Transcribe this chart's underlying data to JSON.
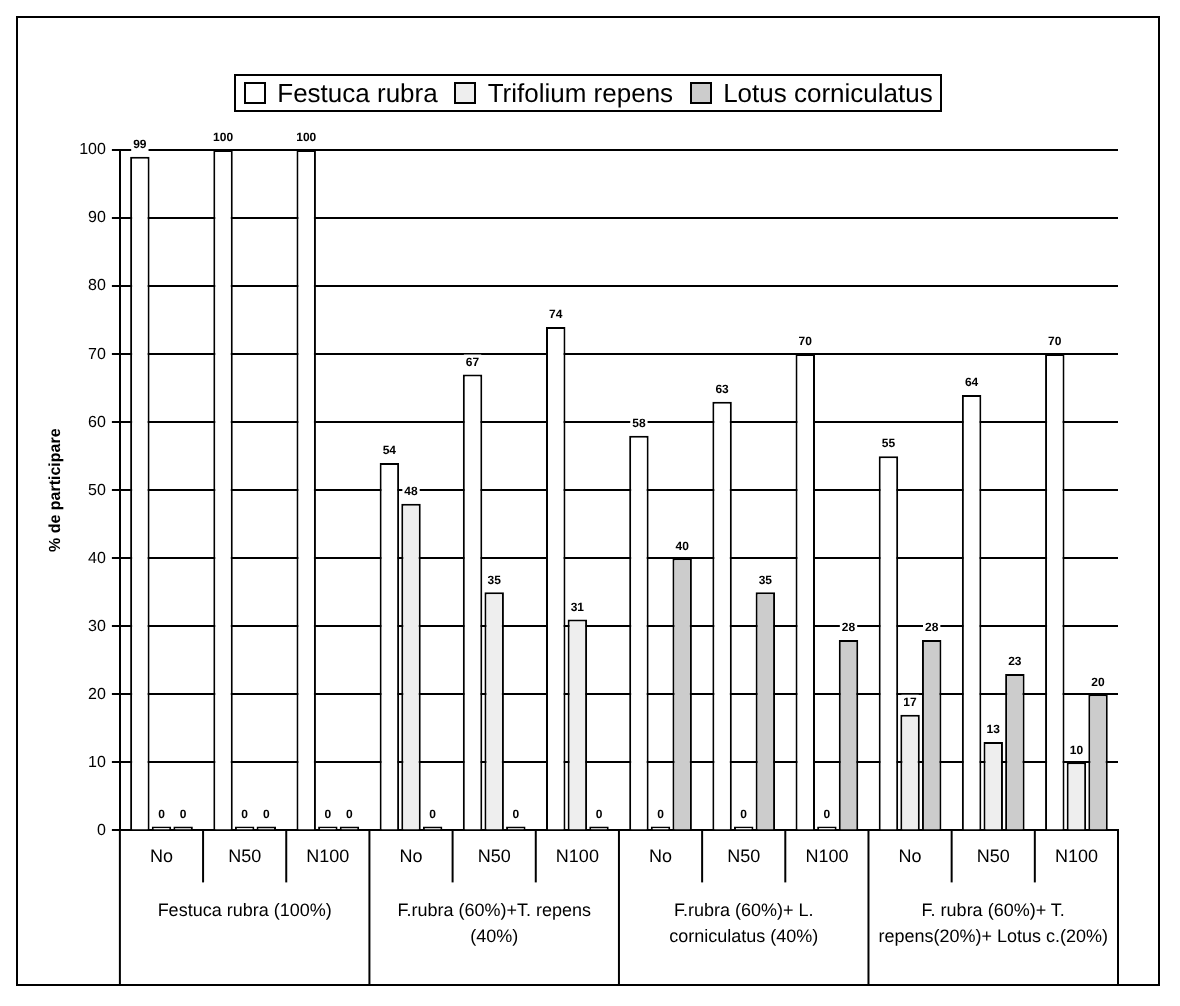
{
  "chart_data": {
    "type": "bar",
    "ylabel": "% de participare",
    "categories": [
      "No",
      "N50",
      "N100",
      "No",
      "N50",
      "N100",
      "No",
      "N50",
      "N100",
      "No",
      "N50",
      "N100"
    ],
    "series": [
      {
        "name": "Festuca rubra",
        "color": "#ffffff",
        "values": [
          99,
          100,
          100,
          54,
          67,
          74,
          58,
          63,
          70,
          55,
          64,
          70
        ]
      },
      {
        "name": "Trifolium repens",
        "color": "#eeeeee",
        "values": [
          0,
          0,
          0,
          48,
          35,
          31,
          0,
          0,
          0,
          17,
          13,
          10
        ]
      },
      {
        "name": "Lotus corniculatus",
        "color": "#cccccc",
        "values": [
          0,
          0,
          0,
          0,
          0,
          0,
          40,
          35,
          28,
          28,
          23,
          20
        ]
      }
    ],
    "ylim": [
      0,
      100
    ],
    "yticks": [
      0,
      10,
      20,
      30,
      40,
      50,
      60,
      70,
      80,
      90,
      100
    ],
    "grid": "y",
    "legend": "top",
    "data_labels": true,
    "annotations": [
      "Festuca rubra (100%)",
      "F.rubra (60%)+T. repens (40%)",
      "F.rubra (60%)+ L. corniculatus (40%)",
      "F. rubra (60%)+ T. repens(20%)+ Lotus c.(20%)"
    ]
  }
}
